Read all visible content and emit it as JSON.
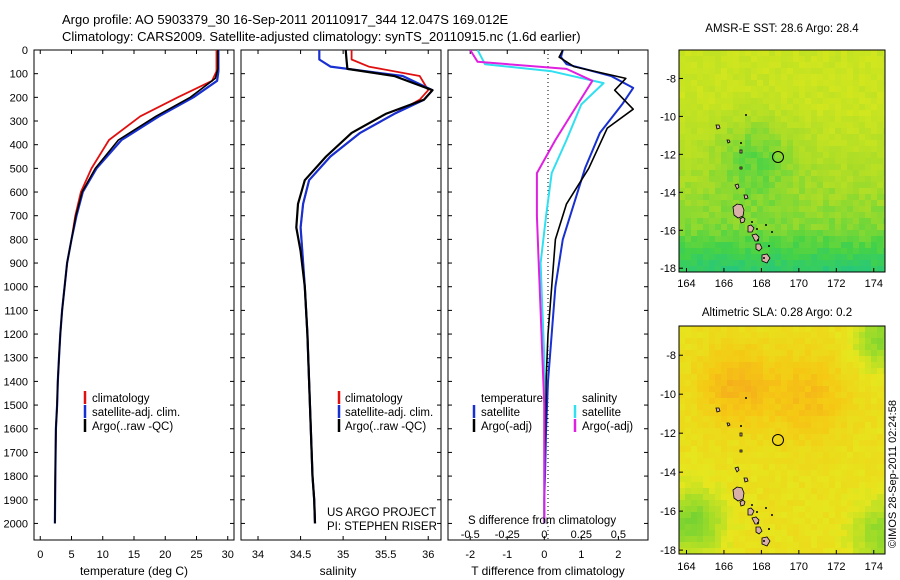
{
  "header": {
    "line1": "Argo profile: AO 5903379_30 16-Sep-2011 20110917_344 12.047S 169.012E",
    "line2": "Climatology: CARS2009. Satellite-adjusted climatology: synTS_20110915.nc (1.6d earlier)"
  },
  "colors": {
    "climatology": "#e01010",
    "satellite": "#1830d0",
    "argo": "#000000",
    "sal_satellite": "#30e0f0",
    "sal_argo": "#e020e0"
  },
  "depth_ticks": [
    "0",
    "100",
    "200",
    "300",
    "400",
    "500",
    "600",
    "700",
    "800",
    "900",
    "1000",
    "1100",
    "1200",
    "1300",
    "1400",
    "1500",
    "1600",
    "1700",
    "1800",
    "1900",
    "2000"
  ],
  "panel_temp": {
    "xlabel": "temperature (deg C)",
    "xticks": [
      "0",
      "5",
      "10",
      "15",
      "20",
      "25",
      "30"
    ],
    "legend": [
      "climatology",
      "satellite-adj. clim.",
      "Argo(..raw -QC)"
    ]
  },
  "panel_sal": {
    "xlabel": "salinity",
    "xticks": [
      "34",
      "34.5",
      "35",
      "35.5",
      "36"
    ],
    "legend": [
      "climatology",
      "satellite-adj. clim.",
      "Argo(..raw -QC)"
    ],
    "credit1": "US ARGO PROJECT",
    "credit2": "PI: STEPHEN RISER"
  },
  "panel_diff": {
    "top_axis_label": "S difference from climatology",
    "top_ticks": [
      "-0.5",
      "-0.25",
      "0",
      "0.25",
      "0.5"
    ],
    "xlabel": "T difference from climatology",
    "bottom_ticks": [
      "-2",
      "-1",
      "0",
      "1",
      "2"
    ],
    "legend_temp_title": "temperature",
    "legend_sal_title": "salinity",
    "legend_temp": [
      "satellite",
      "Argo(-adj)"
    ],
    "legend_sal": [
      "satellite",
      "Argo(-adj)"
    ]
  },
  "map_sst": {
    "title": "AMSR-E SST: 28.6 Argo: 28.4",
    "yticks": [
      "-8",
      "-10",
      "-12",
      "-14",
      "-16",
      "-18"
    ],
    "xticks": [
      "164",
      "166",
      "168",
      "170",
      "172",
      "174"
    ]
  },
  "map_sla": {
    "title": "Altimetric SLA: 0.28 Argo: 0.2",
    "yticks": [
      "-8",
      "-10",
      "-12",
      "-14",
      "-16",
      "-18"
    ],
    "xticks": [
      "164",
      "166",
      "168",
      "170",
      "172",
      "174"
    ]
  },
  "stamp": "©IMOS 28-Sep-2011 02:24:58",
  "chart_data": [
    {
      "type": "line",
      "title": "",
      "xlabel": "temperature (deg C)",
      "ylabel": "",
      "xlim": [
        -1,
        31
      ],
      "ylim": [
        2070,
        0
      ],
      "series": [
        {
          "name": "climatology",
          "x": [
            28.2,
            28.2,
            27.5,
            22,
            16,
            11,
            8.2,
            6.5,
            5.6,
            5,
            4.3,
            3.9,
            3.5,
            3.2,
            3.0,
            2.8,
            2.7,
            2.5,
            2.4,
            2.35
          ],
          "y": [
            0,
            90,
            130,
            200,
            280,
            380,
            500,
            600,
            700,
            800,
            900,
            1000,
            1100,
            1200,
            1300,
            1400,
            1500,
            1600,
            1800,
            2000
          ]
        },
        {
          "name": "satellite-adj. clim.",
          "x": [
            28.5,
            28.5,
            28.3,
            24.5,
            19,
            13,
            9,
            6.8,
            5.8,
            5,
            4.3,
            3.9,
            3.5,
            3.2,
            3.0,
            2.8,
            2.7,
            2.5,
            2.4,
            2.35
          ],
          "y": [
            0,
            90,
            130,
            200,
            280,
            380,
            500,
            600,
            700,
            800,
            900,
            1000,
            1100,
            1200,
            1300,
            1400,
            1500,
            1600,
            1800,
            2000
          ]
        },
        {
          "name": "Argo(..raw -QC)",
          "x": [
            28.4,
            28.4,
            28.0,
            24,
            18.5,
            12.5,
            8.8,
            6.7,
            5.7,
            5,
            4.3,
            3.9,
            3.5,
            3.2,
            3.0,
            2.8,
            2.7,
            2.5,
            2.4,
            2.35
          ],
          "y": [
            0,
            80,
            120,
            200,
            280,
            380,
            500,
            600,
            700,
            800,
            900,
            1000,
            1100,
            1200,
            1300,
            1400,
            1500,
            1600,
            1800,
            2000
          ]
        }
      ]
    },
    {
      "type": "line",
      "title": "",
      "xlabel": "salinity",
      "ylabel": "",
      "xlim": [
        33.8,
        36.15
      ],
      "ylim": [
        2070,
        0
      ],
      "series": [
        {
          "name": "climatology",
          "x": [
            35.1,
            35.1,
            35.3,
            35.9,
            36.0,
            35.9,
            35.6,
            35.2,
            34.85,
            34.6,
            34.53,
            34.5,
            34.52,
            34.55,
            34.58,
            34.6,
            34.62,
            34.64,
            34.66,
            34.67
          ],
          "y": [
            0,
            40,
            70,
            110,
            170,
            210,
            270,
            350,
            450,
            550,
            650,
            750,
            850,
            1000,
            1200,
            1400,
            1600,
            1800,
            1900,
            2000
          ]
        },
        {
          "name": "satellite-adj. clim.",
          "x": [
            34.72,
            34.72,
            34.85,
            35.7,
            36.05,
            35.95,
            35.6,
            35.2,
            34.85,
            34.6,
            34.53,
            34.5,
            34.52,
            34.55,
            34.58,
            34.6,
            34.62,
            34.64,
            34.66,
            34.67
          ],
          "y": [
            0,
            40,
            70,
            110,
            170,
            210,
            270,
            350,
            450,
            550,
            650,
            750,
            850,
            1000,
            1200,
            1400,
            1600,
            1800,
            1900,
            2000
          ]
        },
        {
          "name": "Argo(..raw -QC)",
          "x": [
            35.03,
            35.04,
            35.05,
            35.6,
            36.05,
            35.95,
            35.5,
            35.1,
            34.8,
            34.55,
            34.47,
            34.45,
            34.5,
            34.55,
            34.58,
            34.6,
            34.62,
            34.64,
            34.66,
            34.67
          ],
          "y": [
            0,
            40,
            80,
            110,
            170,
            210,
            270,
            350,
            450,
            550,
            650,
            750,
            850,
            1000,
            1200,
            1400,
            1600,
            1800,
            1900,
            2000
          ]
        }
      ]
    },
    {
      "type": "line",
      "title": "",
      "xlabel": "T difference from climatology",
      "ylabel": "",
      "xlim": [
        -2.6,
        2.8
      ],
      "ylim": [
        2070,
        0
      ],
      "series": [
        {
          "name": "temperature satellite",
          "x": [
            0.5,
            0.45,
            0.6,
            1.8,
            2.4,
            2.1,
            1.5,
            1.1,
            0.8,
            0.5,
            0.3,
            0.2,
            0.1,
            0.05,
            0.02,
            0,
            0
          ],
          "y": [
            0,
            30,
            60,
            110,
            160,
            230,
            350,
            500,
            650,
            800,
            1000,
            1200,
            1400,
            1600,
            1800,
            1900,
            2000
          ]
        },
        {
          "name": "temperature Argo(-adj)",
          "x": [
            0.5,
            0.4,
            0.8,
            2.2,
            1.9,
            2.4,
            1.7,
            1.2,
            0.6,
            0.3,
            0.2,
            0.1,
            0.05,
            0.03,
            0,
            0,
            0
          ],
          "y": [
            0,
            30,
            70,
            120,
            170,
            250,
            330,
            500,
            650,
            800,
            1000,
            1200,
            1400,
            1600,
            1800,
            1900,
            2000
          ]
        },
        {
          "name": "salinity satellite",
          "x": [
            -1.8,
            -1.6,
            0.2,
            1.6,
            1.0,
            0.6,
            0.2,
            0.05,
            -0.1,
            -0.05,
            0,
            0,
            0,
            0
          ],
          "y": [
            0,
            60,
            90,
            140,
            230,
            380,
            520,
            700,
            900,
            1100,
            1300,
            1500,
            1800,
            2000
          ]
        },
        {
          "name": "salinity Argo(-adj)",
          "x": [
            -2,
            -1.8,
            0.6,
            1.3,
            0.9,
            0.3,
            -0.2,
            -0.2,
            -0.15,
            -0.1,
            -0.05,
            0,
            0,
            0
          ],
          "y": [
            0,
            50,
            80,
            130,
            230,
            380,
            520,
            700,
            900,
            1100,
            1300,
            1500,
            1800,
            2000
          ]
        }
      ]
    }
  ]
}
